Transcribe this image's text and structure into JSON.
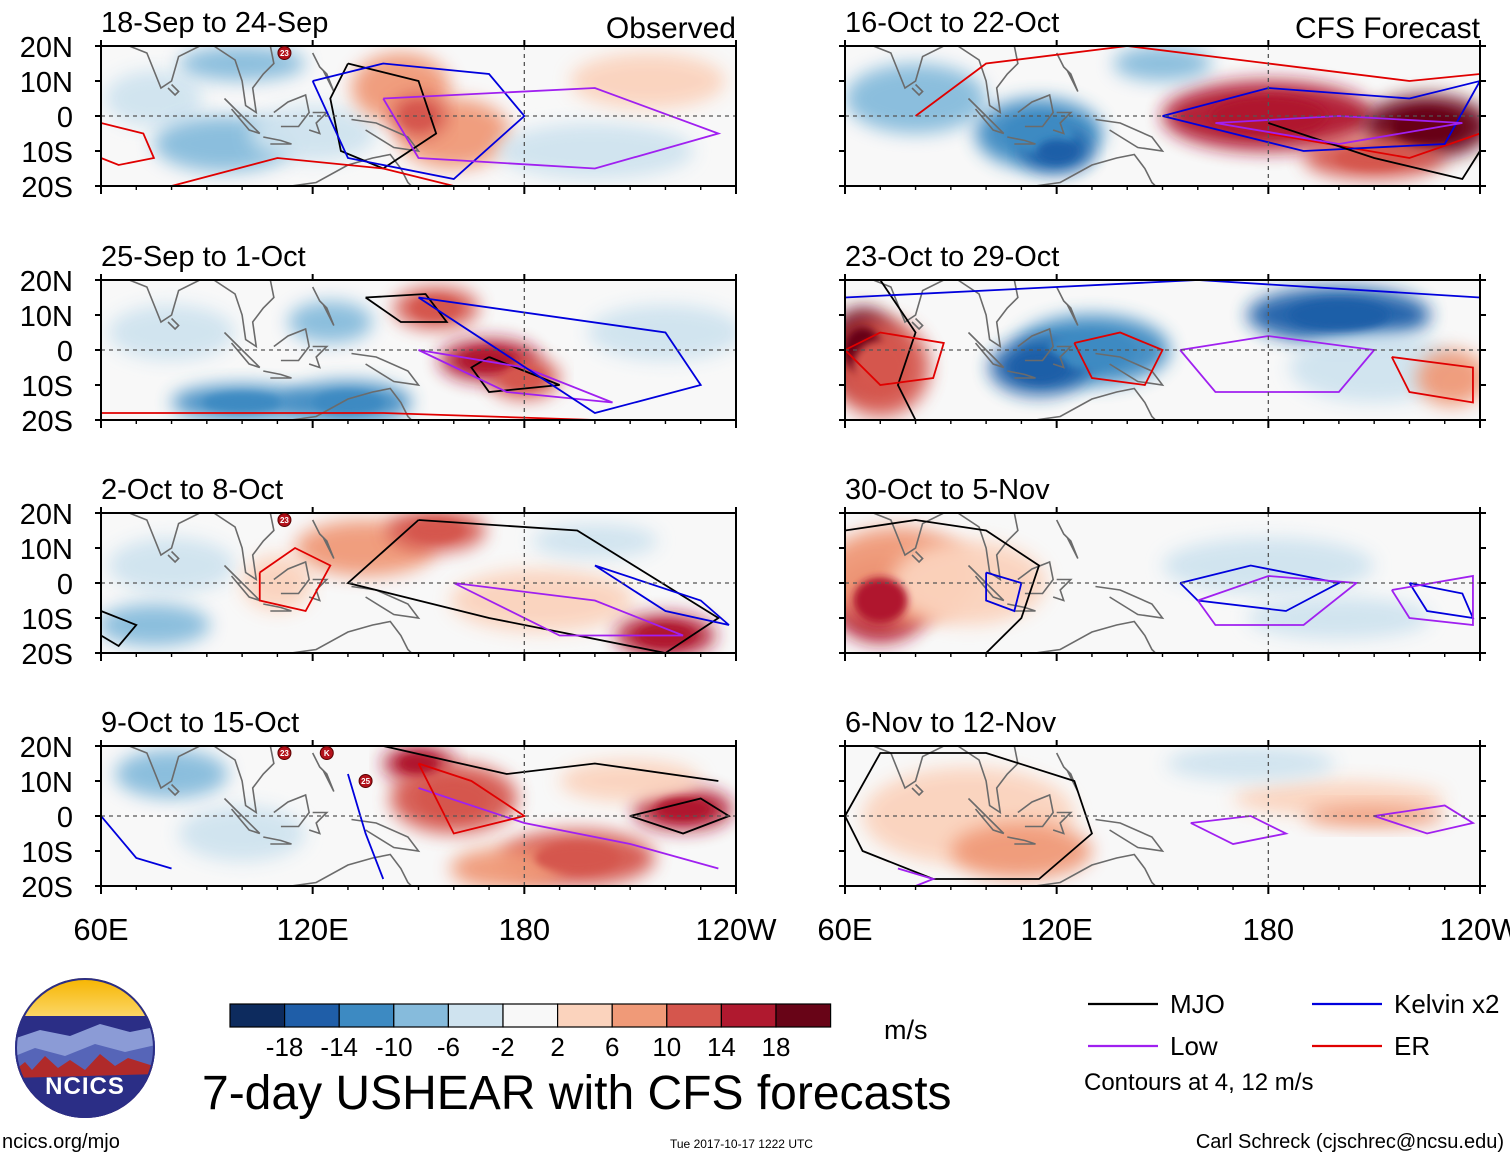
{
  "chart_data": {
    "type": "heatmap",
    "title": "7-day USHEAR with CFS forecasts",
    "variable": "USHEAR",
    "units": "m/s",
    "x_ticks": [
      "60E",
      "120E",
      "180",
      "120W"
    ],
    "y_ticks": [
      "20N",
      "10N",
      "0",
      "10S",
      "20S"
    ],
    "xlim_deg_east": [
      60,
      240
    ],
    "ylim_deg_north": [
      -20,
      20
    ],
    "panel_columns": [
      {
        "label": "Observed",
        "panels": [
          "18-Sep to 24-Sep",
          "25-Sep to 1-Oct",
          "2-Oct to 8-Oct",
          "9-Oct to 15-Oct"
        ]
      },
      {
        "label": "CFS Forecast",
        "panels": [
          "16-Oct to 22-Oct",
          "23-Oct to 29-Oct",
          "30-Oct to 5-Nov",
          "6-Nov to 12-Nov"
        ]
      }
    ],
    "colorbar": {
      "ticks": [
        "-18",
        "-14",
        "-10",
        "-6",
        "-2",
        "2",
        "6",
        "10",
        "14",
        "18"
      ],
      "colors": [
        "#0d2b5e",
        "#1f5ea8",
        "#3d8ac2",
        "#86bbdc",
        "#cfe3ef",
        "#f8f8f8",
        "#fbd3bd",
        "#f09a78",
        "#d5564d",
        "#b0192f",
        "#680417"
      ]
    },
    "contours": {
      "levels_m_s": [
        4,
        12
      ],
      "note": "Contours at 4, 12 m/s",
      "series": [
        {
          "name": "MJO",
          "color": "#000000"
        },
        {
          "name": "Kelvin x2",
          "color": "#0000dd"
        },
        {
          "name": "Low",
          "color": "#a020f0"
        },
        {
          "name": "ER",
          "color": "#e00000"
        }
      ]
    },
    "storm_markers": [
      "23",
      "25",
      "K"
    ]
  },
  "logo": {
    "text": "NCICS"
  },
  "footer": {
    "left": "ncics.org/mjo",
    "timestamp": "Tue 2017-10-17 1222 UTC",
    "credit": "Carl Schreck (cjschrec@ncsu.edu)"
  }
}
